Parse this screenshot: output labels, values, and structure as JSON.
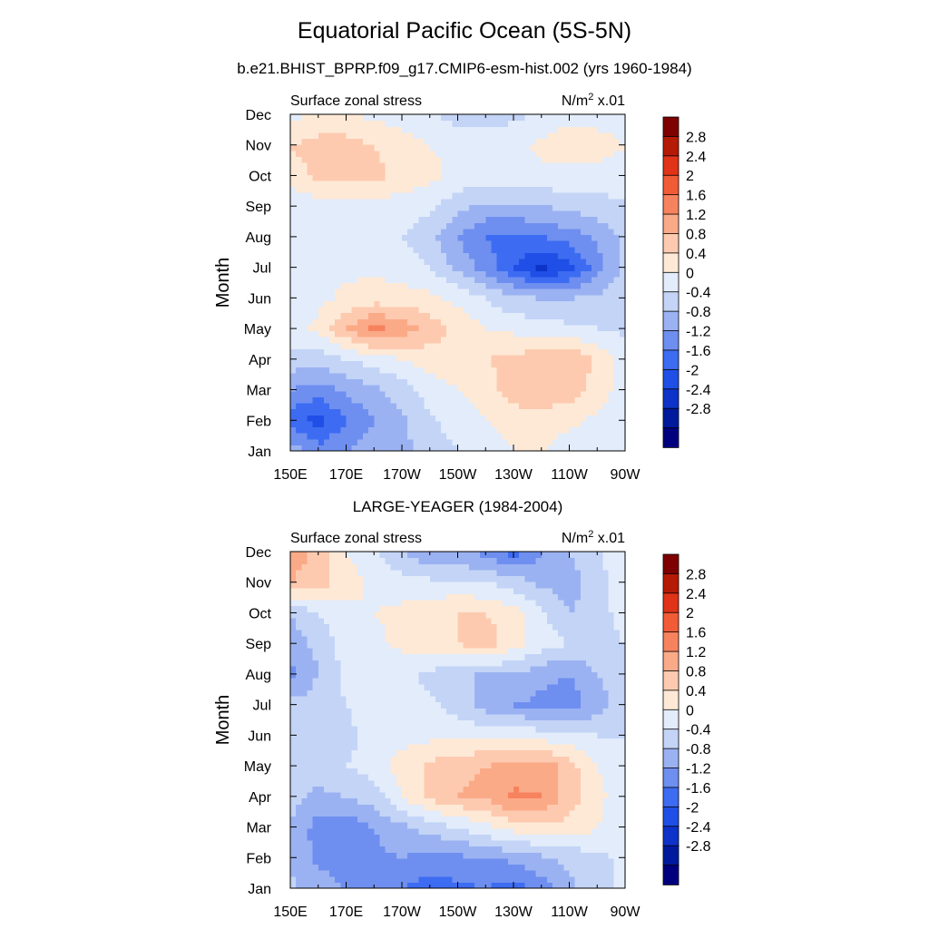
{
  "page": {
    "title": "Equatorial Pacific Ocean (5S-5N)",
    "subtitle": "b.e21.BHIST_BPRP.f09_g17.CMIP6-esm-hist.002 (yrs 1960-1984)"
  },
  "colorbar": {
    "levels": [
      -2.8,
      -2.4,
      -2,
      -1.6,
      -1.2,
      -0.8,
      -0.4,
      0,
      0.4,
      0.8,
      1.2,
      1.6,
      2,
      2.4,
      2.8
    ],
    "labels": [
      "2.8",
      "2.4",
      "2",
      "1.6",
      "1.2",
      "0.8",
      "0.4",
      "0",
      "-0.4",
      "-0.8",
      "-1.2",
      "-1.6",
      "-2",
      "-2.4",
      "-2.8"
    ],
    "colors": [
      "#00007f",
      "#001a9e",
      "#0d33c8",
      "#1f4fe6",
      "#3d6cf2",
      "#6e8ff0",
      "#9bb2f2",
      "#c3d4f6",
      "#e2ecfb",
      "#fde9d6",
      "#fdcab0",
      "#fbaa88",
      "#f7835e",
      "#f15c36",
      "#e03317",
      "#b51a06",
      "#7f0000"
    ]
  },
  "chart_data": [
    {
      "type": "heatmap",
      "title": "",
      "left_label": "Surface zonal stress",
      "units_label": "N/m",
      "units_exp": "2",
      "units_scale": " x.01",
      "xlabel": "",
      "ylabel": "Month",
      "x_ticks": [
        "150E",
        "170E",
        "170W",
        "150W",
        "130W",
        "110W",
        "90W"
      ],
      "y_ticks": [
        "Jan",
        "Feb",
        "Mar",
        "Apr",
        "May",
        "Jun",
        "Jul",
        "Aug",
        "Sep",
        "Oct",
        "Nov",
        "Dec"
      ],
      "x": [
        150,
        160,
        170,
        180,
        190,
        200,
        210,
        220,
        230,
        240,
        250,
        260,
        270
      ],
      "y_months": [
        1,
        2,
        3,
        4,
        5,
        6,
        7,
        8,
        9,
        10,
        11,
        12
      ],
      "z": [
        [
          -0.6,
          -1.0,
          -0.8,
          -0.6,
          -0.5,
          -0.2,
          0.0,
          0.2,
          0.4,
          0.4,
          0.2,
          0.1,
          0.0
        ],
        [
          -1.4,
          -1.8,
          -1.2,
          -0.8,
          -0.5,
          -0.1,
          0.2,
          0.4,
          0.6,
          0.6,
          0.5,
          0.3,
          0.1
        ],
        [
          -0.8,
          -1.0,
          -0.7,
          -0.5,
          -0.2,
          0.2,
          0.4,
          0.6,
          1.0,
          1.1,
          1.0,
          0.6,
          0.2
        ],
        [
          -0.1,
          -0.3,
          0.0,
          0.2,
          0.4,
          0.6,
          0.7,
          0.8,
          0.9,
          1.1,
          1.2,
          0.7,
          0.2
        ],
        [
          0.2,
          0.5,
          1.2,
          1.7,
          1.5,
          1.0,
          0.7,
          0.4,
          0.3,
          0.2,
          0.1,
          0.0,
          -0.1
        ],
        [
          0.2,
          0.3,
          0.5,
          0.6,
          0.6,
          0.5,
          0.3,
          0.0,
          -0.3,
          -0.4,
          -0.4,
          -0.3,
          -0.1
        ],
        [
          0.2,
          0.2,
          0.3,
          0.3,
          0.2,
          0.0,
          -0.5,
          -1.0,
          -1.6,
          -2.1,
          -1.8,
          -1.0,
          -0.3
        ],
        [
          0.1,
          0.1,
          0.1,
          0.1,
          0.0,
          -0.3,
          -0.8,
          -1.2,
          -1.3,
          -1.2,
          -1.0,
          -0.7,
          -0.3
        ],
        [
          0.1,
          0.2,
          0.2,
          0.2,
          0.2,
          0.1,
          -0.3,
          -0.5,
          -0.5,
          -0.4,
          -0.3,
          -0.2,
          -0.1
        ],
        [
          0.6,
          0.9,
          1.0,
          0.9,
          0.7,
          0.5,
          0.3,
          0.2,
          0.2,
          0.3,
          0.3,
          0.3,
          0.3
        ],
        [
          0.8,
          1.0,
          1.0,
          0.8,
          0.6,
          0.4,
          0.3,
          0.3,
          0.3,
          0.5,
          0.6,
          0.5,
          0.4
        ],
        [
          0.3,
          0.4,
          0.4,
          0.3,
          0.2,
          0.1,
          -0.2,
          -0.2,
          -0.1,
          0.1,
          0.3,
          0.3,
          0.3
        ]
      ]
    },
    {
      "type": "heatmap",
      "title": "LARGE-YEAGER (1984-2004)",
      "left_label": "Surface zonal stress",
      "units_label": "N/m",
      "units_exp": "2",
      "units_scale": " x.01",
      "xlabel": "",
      "ylabel": "Month",
      "x_ticks": [
        "150E",
        "170E",
        "170W",
        "150W",
        "130W",
        "110W",
        "90W"
      ],
      "y_ticks": [
        "Jan",
        "Feb",
        "Mar",
        "Apr",
        "May",
        "Jun",
        "Jul",
        "Aug",
        "Sep",
        "Oct",
        "Nov",
        "Dec"
      ],
      "x": [
        150,
        160,
        170,
        180,
        190,
        200,
        210,
        220,
        230,
        240,
        250,
        260,
        270
      ],
      "y_months": [
        1,
        2,
        3,
        4,
        5,
        6,
        7,
        8,
        9,
        10,
        11,
        12
      ],
      "z": [
        [
          -0.3,
          -0.6,
          -0.8,
          -0.9,
          -1.2,
          -1.4,
          -1.3,
          -1.2,
          -1.4,
          -1.0,
          -0.5,
          -0.2,
          0.1
        ],
        [
          -0.5,
          -0.9,
          -1.0,
          -0.9,
          -0.8,
          -1.0,
          -0.9,
          -0.8,
          -0.7,
          -0.5,
          -0.3,
          -0.1,
          0.1
        ],
        [
          -0.4,
          -1.0,
          -1.1,
          -0.8,
          -0.5,
          -0.2,
          0.0,
          0.3,
          0.6,
          0.7,
          0.7,
          0.4,
          0.2
        ],
        [
          -0.3,
          -0.5,
          -0.4,
          -0.2,
          0.4,
          0.9,
          1.2,
          1.3,
          1.7,
          1.6,
          1.0,
          0.5,
          0.2
        ],
        [
          -0.2,
          -0.2,
          0.0,
          0.2,
          0.6,
          0.9,
          1.1,
          1.2,
          1.3,
          1.5,
          1.0,
          0.4,
          0.1
        ],
        [
          -0.2,
          -0.2,
          -0.1,
          0.1,
          0.2,
          0.3,
          0.3,
          0.3,
          0.3,
          0.2,
          0.1,
          0.0,
          0.0
        ],
        [
          -0.3,
          -0.2,
          0.0,
          0.2,
          0.2,
          0.1,
          -0.2,
          -0.6,
          -0.8,
          -0.9,
          -1.0,
          -0.6,
          -0.2
        ],
        [
          -0.9,
          -0.4,
          0.1,
          0.3,
          0.1,
          -0.1,
          -0.3,
          -0.5,
          -0.4,
          -0.7,
          -0.8,
          -0.4,
          -0.1
        ],
        [
          -0.6,
          -0.3,
          0.2,
          0.3,
          0.5,
          0.7,
          0.8,
          1.0,
          0.6,
          0.2,
          0.0,
          -0.2,
          0.0
        ],
        [
          -0.4,
          0.0,
          0.3,
          0.4,
          0.5,
          0.6,
          0.8,
          0.8,
          0.6,
          0.1,
          -0.4,
          -0.2,
          0.2
        ],
        [
          1.2,
          1.0,
          0.6,
          0.3,
          0.2,
          0.1,
          0.1,
          0.0,
          -0.2,
          -0.5,
          -0.6,
          -0.2,
          0.4
        ],
        [
          1.4,
          1.1,
          0.4,
          0.1,
          -0.4,
          -0.8,
          -0.8,
          -0.9,
          -1.4,
          -0.8,
          -0.4,
          -0.1,
          0.3
        ]
      ]
    }
  ]
}
